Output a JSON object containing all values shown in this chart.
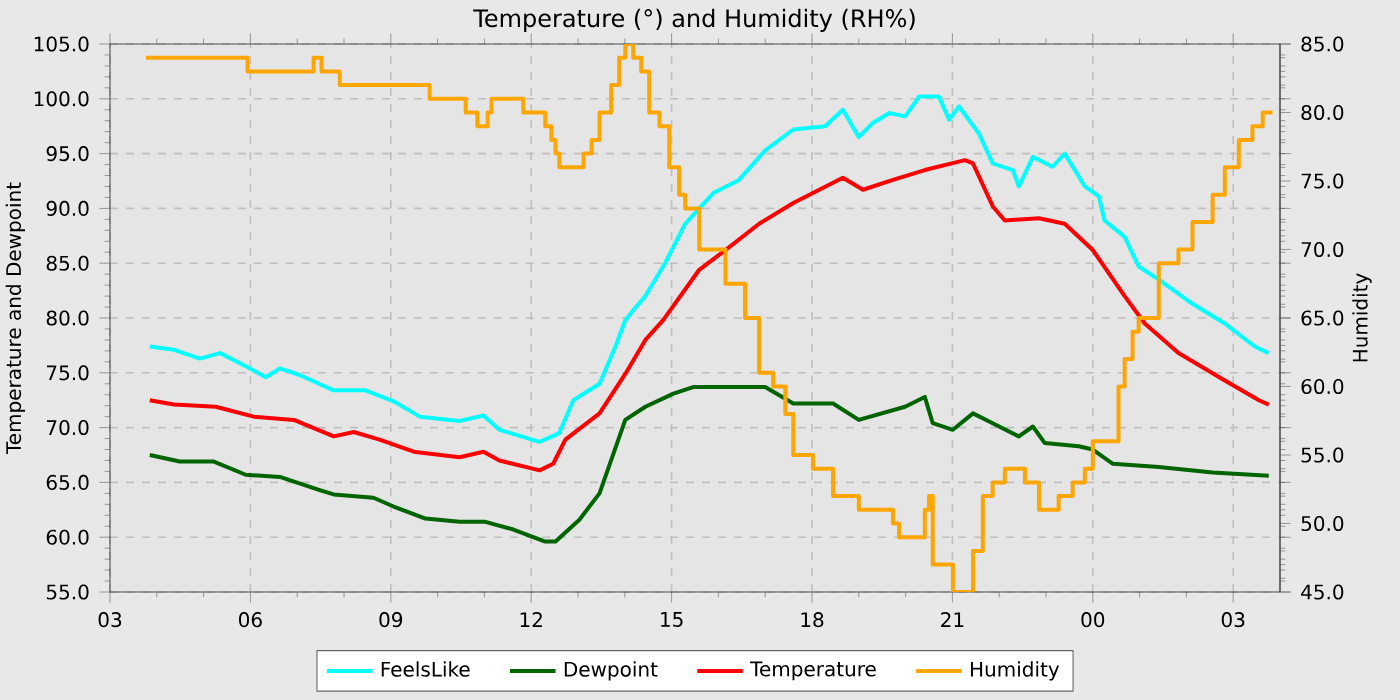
{
  "chart_data": {
    "type": "line",
    "title": "Temperature (°) and Humidity (RH%)",
    "ylabel": "Temperature and Dewpoint",
    "y2label": "Humidity",
    "xlim": [
      3,
      28
    ],
    "xticks": [
      {
        "value": 3,
        "label": "03"
      },
      {
        "value": 6,
        "label": "06"
      },
      {
        "value": 9,
        "label": "09"
      },
      {
        "value": 12,
        "label": "12"
      },
      {
        "value": 15,
        "label": "15"
      },
      {
        "value": 18,
        "label": "18"
      },
      {
        "value": 21,
        "label": "21"
      },
      {
        "value": 24,
        "label": "00"
      },
      {
        "value": 27,
        "label": "03"
      }
    ],
    "ylim": [
      55,
      105
    ],
    "yticks": [
      {
        "value": 55,
        "label": "55.0"
      },
      {
        "value": 60,
        "label": "60.0"
      },
      {
        "value": 65,
        "label": "65.0"
      },
      {
        "value": 70,
        "label": "70.0"
      },
      {
        "value": 75,
        "label": "75.0"
      },
      {
        "value": 80,
        "label": "80.0"
      },
      {
        "value": 85,
        "label": "85.0"
      },
      {
        "value": 90,
        "label": "90.0"
      },
      {
        "value": 95,
        "label": "95.0"
      },
      {
        "value": 100,
        "label": "100.0"
      },
      {
        "value": 105,
        "label": "105.0"
      }
    ],
    "y2lim": [
      45,
      85
    ],
    "y2ticks": [
      {
        "value": 45,
        "label": "45.0"
      },
      {
        "value": 50,
        "label": "50.0"
      },
      {
        "value": 55,
        "label": "55.0"
      },
      {
        "value": 60,
        "label": "60.0"
      },
      {
        "value": 65,
        "label": "65.0"
      },
      {
        "value": 70,
        "label": "70.0"
      },
      {
        "value": 75,
        "label": "75.0"
      },
      {
        "value": 80,
        "label": "80.0"
      },
      {
        "value": 85,
        "label": "85.0"
      }
    ],
    "grid": true,
    "legend": "bottom",
    "series": [
      {
        "name": "FeelsLike",
        "color": "#00ffff",
        "x": [
          3.85,
          4.37,
          4.92,
          5.35,
          5.9,
          6.33,
          6.63,
          7.05,
          7.78,
          8.46,
          9.06,
          9.62,
          10.47,
          10.98,
          11.32,
          12.18,
          12.6,
          12.9,
          13.46,
          13.8,
          14.01,
          14.18,
          14.44,
          14.86,
          15.29,
          15.89,
          16.44,
          17.0,
          17.6,
          18.28,
          18.66,
          19.0,
          19.3,
          19.65,
          19.99,
          20.29,
          20.71,
          20.93,
          21.14,
          21.57,
          21.86,
          22.29,
          22.42,
          22.72,
          23.14,
          23.4,
          23.83,
          24.13,
          24.25,
          24.68,
          24.98,
          25.41,
          26.13,
          26.82,
          27.46,
          27.76
        ],
        "values": [
          77.4,
          77.1,
          76.3,
          76.8,
          75.6,
          74.6,
          75.4,
          74.8,
          73.4,
          73.4,
          72.4,
          71.0,
          70.6,
          71.1,
          69.8,
          68.7,
          69.5,
          72.5,
          74.0,
          77.4,
          79.8,
          80.7,
          82.0,
          85.0,
          88.6,
          91.4,
          92.6,
          95.3,
          97.2,
          97.5,
          99.0,
          96.5,
          97.8,
          98.7,
          98.4,
          100.2,
          100.2,
          98.1,
          99.3,
          96.8,
          94.1,
          93.5,
          92.0,
          94.7,
          93.8,
          95.0,
          92.0,
          91.1,
          88.9,
          87.4,
          84.7,
          83.5,
          81.3,
          79.5,
          77.4,
          76.8
        ]
      },
      {
        "name": "Dewpoint",
        "color": "#006400",
        "x": [
          3.85,
          4.49,
          5.22,
          5.9,
          6.63,
          7.48,
          7.78,
          8.63,
          9.06,
          9.74,
          10.47,
          11.02,
          11.62,
          12.3,
          12.52,
          13.03,
          13.46,
          14.01,
          14.44,
          15.04,
          15.46,
          16.15,
          17.0,
          17.6,
          18.45,
          19.0,
          19.99,
          20.41,
          20.58,
          21.01,
          21.44,
          21.86,
          22.42,
          22.72,
          22.97,
          23.7,
          24.0,
          24.43,
          25.41,
          26.56,
          27.76
        ],
        "values": [
          67.5,
          66.9,
          66.9,
          65.7,
          65.5,
          64.3,
          63.9,
          63.6,
          62.8,
          61.7,
          61.4,
          61.4,
          60.7,
          59.6,
          59.6,
          61.6,
          64.0,
          70.7,
          71.9,
          73.1,
          73.7,
          73.7,
          73.7,
          72.2,
          72.2,
          70.7,
          71.9,
          72.8,
          70.4,
          69.8,
          71.3,
          70.4,
          69.2,
          70.1,
          68.6,
          68.3,
          68.0,
          66.7,
          66.4,
          65.9,
          65.6
        ]
      },
      {
        "name": "Temperature",
        "color": "#ff0000",
        "x": [
          3.85,
          4.37,
          5.26,
          6.07,
          6.93,
          7.78,
          8.21,
          8.76,
          9.49,
          10.47,
          10.98,
          11.32,
          12.18,
          12.47,
          12.73,
          13.46,
          14.01,
          14.44,
          14.82,
          15.59,
          16.15,
          16.87,
          17.6,
          18.66,
          19.09,
          19.73,
          20.41,
          21.27,
          21.44,
          21.86,
          22.12,
          22.85,
          23.4,
          24.0,
          24.68,
          25.11,
          25.83,
          26.82,
          27.55,
          27.76
        ],
        "values": [
          72.5,
          72.1,
          71.9,
          71.0,
          70.7,
          69.2,
          69.6,
          68.9,
          67.8,
          67.3,
          67.8,
          67.0,
          66.1,
          66.7,
          68.9,
          71.3,
          74.9,
          78.0,
          79.8,
          84.4,
          86.2,
          88.6,
          90.5,
          92.8,
          91.7,
          92.6,
          93.5,
          94.4,
          94.1,
          90.2,
          88.9,
          89.1,
          88.6,
          86.2,
          82.0,
          79.5,
          76.8,
          74.3,
          72.5,
          72.1
        ]
      },
      {
        "name": "Humidity",
        "color": "#ffa500",
        "type": "step",
        "axis": "y2",
        "x": [
          3.77,
          5.94,
          7.35,
          7.52,
          7.91,
          9.83,
          10.6,
          10.85,
          11.07,
          11.15,
          11.83,
          12.3,
          12.43,
          12.52,
          12.6,
          13.12,
          13.29,
          13.46,
          13.71,
          13.88,
          14.01,
          14.18,
          14.35,
          14.52,
          14.74,
          14.95,
          15.16,
          15.29,
          15.59,
          16.15,
          16.57,
          16.87,
          17.17,
          17.43,
          17.6,
          18.02,
          18.45,
          19.0,
          19.73,
          19.86,
          20.41,
          20.5,
          20.58,
          21.01,
          21.22,
          21.44,
          21.65,
          21.86,
          22.12,
          22.55,
          22.85,
          23.27,
          23.57,
          23.83,
          24.0,
          24.25,
          24.55,
          24.68,
          24.85,
          24.98,
          25.41,
          25.83,
          26.13,
          26.56,
          26.82,
          27.12,
          27.41,
          27.63,
          27.84
        ],
        "values": [
          84,
          83,
          84,
          83,
          82,
          81,
          80,
          79,
          80,
          81,
          80,
          79,
          78,
          77,
          76,
          77,
          78,
          80,
          82,
          84,
          85,
          84,
          83,
          80,
          79,
          76,
          74,
          73,
          70,
          67.5,
          65,
          61,
          60,
          58,
          55,
          54,
          52,
          51,
          50,
          49,
          51,
          52,
          47,
          45,
          45,
          48,
          52,
          53,
          54,
          53,
          51,
          52,
          53,
          54,
          56,
          56,
          60,
          62,
          64,
          65,
          69,
          70,
          72,
          74,
          76,
          78,
          79,
          80,
          80
        ]
      }
    ]
  }
}
